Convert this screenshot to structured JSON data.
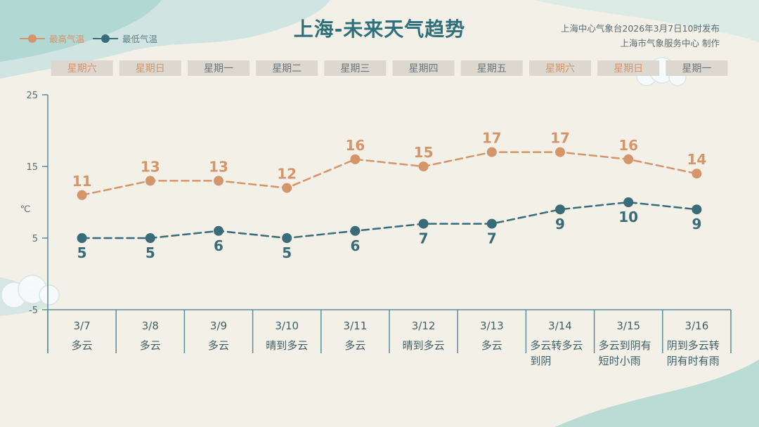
{
  "header": {
    "title": "上海-未来天气趋势",
    "publisher_line1": "上海中心气象台2026年3月7日10时发布",
    "publisher_line2": "上海市气象服务中心  制作"
  },
  "legend": {
    "high_label": "最高气温",
    "low_label": "最低气温"
  },
  "colors": {
    "high": "#d4956b",
    "low": "#3a6b78",
    "weekday_box": "#dcd8d0",
    "weekday_text": "#6a7478",
    "weekend_text": "#d4956b",
    "axis": "#5a8d99",
    "title": "#2d6f7b"
  },
  "chart_data": {
    "type": "line",
    "title": "上海-未来天气趋势",
    "ylabel": "℃",
    "ylim": [
      -5,
      25
    ],
    "yticks": [
      -5,
      5,
      15,
      25
    ],
    "legend_position": "top-left",
    "categories": [
      "3/7",
      "3/8",
      "3/9",
      "3/10",
      "3/11",
      "3/12",
      "3/13",
      "3/14",
      "3/15",
      "3/16"
    ],
    "weekdays": [
      "星期六",
      "星期日",
      "星期一",
      "星期二",
      "星期三",
      "星期四",
      "星期五",
      "星期六",
      "星期日",
      "星期一"
    ],
    "weekend": [
      true,
      true,
      false,
      false,
      false,
      false,
      false,
      true,
      true,
      false
    ],
    "weather": [
      [
        "多云"
      ],
      [
        "多云"
      ],
      [
        "多云"
      ],
      [
        "晴到多云"
      ],
      [
        "多云"
      ],
      [
        "晴到多云"
      ],
      [
        "多云"
      ],
      [
        "多云转多云",
        "到阴"
      ],
      [
        "多云到阴有",
        "短时小雨"
      ],
      [
        "阴到多云转",
        "阴有时有雨"
      ]
    ],
    "series": [
      {
        "name": "最高气温",
        "values": [
          11,
          13,
          13,
          12,
          16,
          15,
          17,
          17,
          16,
          14
        ]
      },
      {
        "name": "最低气温",
        "values": [
          5,
          5,
          6,
          5,
          6,
          7,
          7,
          9,
          10,
          9
        ]
      }
    ]
  }
}
